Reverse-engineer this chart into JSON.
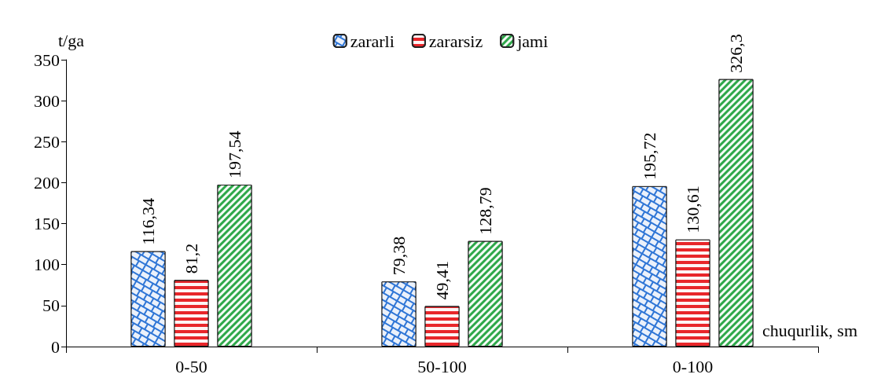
{
  "chart_data": {
    "type": "bar",
    "xlabel": "chuqurlik, sm",
    "ylabel": "t/ga",
    "categories": [
      "0-50",
      "50-100",
      "0-100"
    ],
    "series": [
      {
        "name": "zararli",
        "color": "#2e75d6",
        "values": [
          116.34,
          79.38,
          195.72
        ],
        "value_labels": [
          "116,34",
          "79,38",
          "195,72"
        ]
      },
      {
        "name": "zararsiz",
        "color": "#e8262a",
        "values": [
          81.2,
          49.41,
          130.61
        ],
        "value_labels": [
          "81,2",
          "49,41",
          "130,61"
        ]
      },
      {
        "name": "jami",
        "color": "#2ea84a",
        "values": [
          197.54,
          128.79,
          326.3
        ],
        "value_labels": [
          "197,54",
          "128,79",
          "326,3"
        ]
      }
    ],
    "ylim": [
      0,
      350
    ],
    "yticks": [
      0,
      50,
      100,
      150,
      200,
      250,
      300,
      350
    ],
    "grid": false,
    "legend": "top"
  }
}
